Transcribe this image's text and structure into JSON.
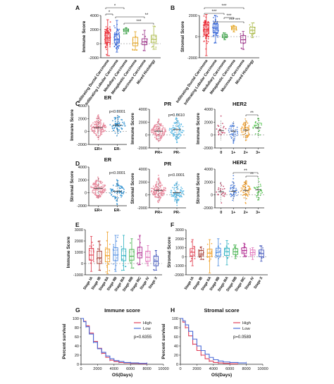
{
  "colors": {
    "ductal": "#e8202a",
    "lobular": "#2d5fd6",
    "medullary": "#2e9a3a",
    "metaplastic": "#e3a21a",
    "mucinous": "#9a2f86",
    "mixed": "#a9b845",
    "er_pos": "#e8889c",
    "er_neg": "#2b8fd0",
    "pr_pos": "#e8889c",
    "pr_neg": "#55b8e6",
    "her2_0": "#c23a60",
    "her2_1": "#4a7ee0",
    "her2_2": "#f0a030",
    "her2_3": "#4fc24a",
    "stage": [
      "#e0384a",
      "#a0332a",
      "#f0a028",
      "#4a8ae0",
      "#2ab0c0",
      "#40b048",
      "#b02a90",
      "#e070b8",
      "#3a4fb8"
    ],
    "km_high": "#e0405a",
    "km_low": "#4a6ad8"
  },
  "panels": {
    "A": "A",
    "B": "B",
    "C": "C",
    "D": "D",
    "E": "E",
    "F": "F",
    "G": "G",
    "H": "H"
  },
  "chart_data": [
    {
      "id": "A",
      "type": "box",
      "ylabel": "Immune Score",
      "ylim": [
        -2000,
        4000
      ],
      "yticks": [
        "4000",
        "2000",
        "0",
        "-2000"
      ],
      "categories": [
        "Infiltrating Ductal Carcinoma",
        "Infiltrating Lobular Carcinoma",
        "Medullary Carcinoma",
        "Metaplastic Carcinoma",
        "Mucinous Carcinoma",
        "Mixed Histology"
      ],
      "values": [
        {
          "min": -1700,
          "q1": 150,
          "median": 800,
          "q3": 1500,
          "max": 3400
        },
        {
          "min": -1200,
          "q1": 100,
          "median": 650,
          "q3": 1300,
          "max": 3300
        },
        {
          "min": 1400,
          "q1": 1700,
          "median": 1900,
          "q3": 2100,
          "max": 2250
        },
        {
          "min": -900,
          "q1": -300,
          "median": 100,
          "q3": 900,
          "max": 1700
        },
        {
          "min": -1000,
          "q1": -150,
          "median": 250,
          "q3": 700,
          "max": 1900
        },
        {
          "min": -800,
          "q1": 200,
          "median": 600,
          "q3": 1200,
          "max": 2500
        }
      ],
      "significance": [
        "*",
        "*",
        "**",
        "***"
      ]
    },
    {
      "id": "B",
      "type": "box",
      "ylabel": "Stromal Score",
      "ylim": [
        -2000,
        2000
      ],
      "yticks": [
        "2000",
        "0",
        "-2000"
      ],
      "categories": [
        "Infiltrating Ductal Carcinoma",
        "Infiltrating Lobular Carcinoma",
        "Medullary Carcinoma",
        "Metaplastic Carcinoma",
        "Mucinous Carcinoma",
        "Mixed Histology"
      ],
      "values": [
        {
          "min": -1800,
          "q1": 250,
          "median": 650,
          "q3": 1100,
          "max": 2100
        },
        {
          "min": -600,
          "q1": 400,
          "median": 800,
          "q3": 1200,
          "max": 2000
        },
        {
          "min": -300,
          "q1": -100,
          "median": 50,
          "q3": 200,
          "max": 350
        },
        {
          "min": 450,
          "q1": 650,
          "median": 800,
          "q3": 950,
          "max": 1050
        },
        {
          "min": -1200,
          "q1": -600,
          "median": -300,
          "q3": 100,
          "max": 500
        },
        {
          "min": -100,
          "q1": 300,
          "median": 600,
          "q3": 900,
          "max": 1300
        }
      ],
      "significance": [
        "***",
        "***",
        "***",
        "*** ***"
      ]
    },
    {
      "id": "C-ER",
      "type": "scatter",
      "title": "ER",
      "ylabel": "Immune Score",
      "ylim": [
        -2000,
        4000
      ],
      "yticks": [
        "4000",
        "2000",
        "0",
        "-2000"
      ],
      "categories": [
        "ER+",
        "ER-"
      ],
      "medians": [
        600,
        1000
      ],
      "pvalue": "p<0.0001"
    },
    {
      "id": "C-PR",
      "type": "scatter",
      "title": "PR",
      "ylabel": "Immune Score",
      "ylim": [
        -2000,
        4000
      ],
      "yticks": [
        "4000",
        "2000",
        "0",
        "-2000"
      ],
      "categories": [
        "PR+",
        "PR-"
      ],
      "medians": [
        600,
        850
      ],
      "pvalue": "p=0.0610"
    },
    {
      "id": "C-HER2",
      "type": "scatter",
      "title": "HER2",
      "ylabel": "Immune Score",
      "ylim": [
        -2000,
        4000
      ],
      "yticks": [
        "4000",
        "2000",
        "0",
        "-2000"
      ],
      "categories": [
        "0",
        "1+",
        "2+",
        "3+"
      ],
      "medians": [
        700,
        600,
        750,
        1100
      ],
      "significance": [
        "**"
      ]
    },
    {
      "id": "D-ER",
      "type": "scatter",
      "title": "ER",
      "ylabel": "Stromal Score",
      "ylim": [
        -2000,
        4000
      ],
      "yticks": [
        "4000",
        "2000",
        "0",
        "-2000"
      ],
      "categories": [
        "ER+",
        "ER-"
      ],
      "medians": [
        700,
        250
      ],
      "pvalue": "p<0.0001"
    },
    {
      "id": "D-PR",
      "type": "scatter",
      "title": "PR",
      "ylabel": "Stromal Score",
      "ylim": [
        -2000,
        4000
      ],
      "yticks": [
        "4000",
        "2000",
        "0",
        "-2000"
      ],
      "categories": [
        "PR+",
        "PR-"
      ],
      "medians": [
        700,
        350
      ],
      "pvalue": "p<0.0001"
    },
    {
      "id": "D-HER2",
      "type": "scatter",
      "title": "HER2",
      "ylabel": "Stromal Score",
      "ylim": [
        -2000,
        4000
      ],
      "yticks": [
        "4000",
        "2000",
        "0",
        "-2000"
      ],
      "categories": [
        "0",
        "1+",
        "2+",
        "3+"
      ],
      "medians": [
        500,
        550,
        700,
        800
      ],
      "significance": [
        "**",
        "**"
      ]
    },
    {
      "id": "E",
      "type": "box",
      "ylabel": "Immune Score",
      "ylim": [
        -1000,
        3000
      ],
      "yticks": [
        "3000",
        "2000",
        "1000",
        "0",
        "-1000"
      ],
      "categories": [
        "Stage IA",
        "Stage IB",
        "Stage IIA",
        "Stage IIB",
        "Stage IIIA",
        "Stage IIIB",
        "Stage IIIC",
        "Stage IV",
        "Stage X"
      ],
      "values": [
        {
          "min": -700,
          "q1": 300,
          "median": 750,
          "q3": 1350,
          "max": 2400
        },
        {
          "min": -600,
          "q1": 0,
          "median": 500,
          "q3": 1100,
          "max": 2000
        },
        {
          "min": -900,
          "q1": 150,
          "median": 700,
          "q3": 1300,
          "max": 2800
        },
        {
          "min": -700,
          "q1": 250,
          "median": 750,
          "q3": 1400,
          "max": 2500
        },
        {
          "min": -600,
          "q1": 250,
          "median": 700,
          "q3": 1300,
          "max": 2500
        },
        {
          "min": -400,
          "q1": 300,
          "median": 650,
          "q3": 1250,
          "max": 2200
        },
        {
          "min": -100,
          "q1": 500,
          "median": 950,
          "q3": 1450,
          "max": 2500
        },
        {
          "min": -200,
          "q1": 200,
          "median": 550,
          "q3": 1100,
          "max": 1600
        },
        {
          "min": -600,
          "q1": -200,
          "median": 200,
          "q3": 650,
          "max": 1150
        }
      ]
    },
    {
      "id": "F",
      "type": "box",
      "ylabel": "Stromal Score",
      "ylim": [
        -2000,
        3000
      ],
      "yticks": [
        "3000",
        "2000",
        "1000",
        "0",
        "-1000",
        "-2000"
      ],
      "categories": [
        "Stage IA",
        "Stage IB",
        "Stage IIA",
        "Stage IIB",
        "Stage IIIA",
        "Stage IIIB",
        "Stage IIIC",
        "Stage IV",
        "Stage X"
      ],
      "values": [
        {
          "min": -1000,
          "q1": 100,
          "median": 500,
          "q3": 900,
          "max": 1900
        },
        {
          "min": -300,
          "q1": 100,
          "median": 300,
          "q3": 700,
          "max": 1100
        },
        {
          "min": -1800,
          "q1": 0,
          "median": 400,
          "q3": 850,
          "max": 1900
        },
        {
          "min": -1000,
          "q1": 100,
          "median": 500,
          "q3": 950,
          "max": 2000
        },
        {
          "min": -900,
          "q1": 150,
          "median": 550,
          "q3": 950,
          "max": 1800
        },
        {
          "min": -200,
          "q1": 250,
          "median": 550,
          "q3": 900,
          "max": 1300
        },
        {
          "min": 0,
          "q1": 350,
          "median": 700,
          "q3": 1000,
          "max": 1500
        },
        {
          "min": -300,
          "q1": 200,
          "median": 450,
          "q3": 750,
          "max": 1000
        },
        {
          "min": -500,
          "q1": 0,
          "median": 350,
          "q3": 750,
          "max": 1200
        }
      ]
    },
    {
      "id": "G",
      "type": "line",
      "title": "Immune score",
      "xlabel": "OS(Days)",
      "ylabel": "Percent survival",
      "xlim": [
        0,
        10000
      ],
      "ylim": [
        0,
        100
      ],
      "xticks": [
        "0",
        "2000",
        "4000",
        "6000",
        "8000",
        "10000"
      ],
      "yticks": [
        "100",
        "80",
        "60",
        "40",
        "20",
        "0"
      ],
      "pvalue": "p=0.6355",
      "series": [
        {
          "name": "High",
          "x": [
            0,
            300,
            600,
            1000,
            1500,
            2000,
            2500,
            3000,
            3500,
            4000,
            4600,
            5200,
            6000,
            7000,
            8000
          ],
          "y": [
            100,
            94,
            84,
            68,
            50,
            35,
            24,
            15,
            9,
            6,
            4,
            3,
            2,
            1,
            1
          ]
        },
        {
          "name": "Low",
          "x": [
            0,
            300,
            600,
            1000,
            1500,
            2000,
            2500,
            3000,
            3500,
            4000,
            4600,
            5200,
            6000,
            7000,
            8000
          ],
          "y": [
            100,
            93,
            82,
            66,
            48,
            34,
            26,
            18,
            12,
            8,
            6,
            4,
            3,
            2,
            2
          ]
        }
      ]
    },
    {
      "id": "H",
      "type": "line",
      "title": "Stromal score",
      "xlabel": "OS(Days)",
      "ylabel": "Percent survival",
      "xlim": [
        0,
        10000
      ],
      "ylim": [
        0,
        100
      ],
      "xticks": [
        "0",
        "2000",
        "4000",
        "6000",
        "8000",
        "10000"
      ],
      "yticks": [
        "100",
        "80",
        "60",
        "40",
        "20",
        "0"
      ],
      "pvalue": "p=0.0589",
      "series": [
        {
          "name": "High",
          "x": [
            0,
            300,
            600,
            1000,
            1500,
            2000,
            2500,
            3000,
            3500,
            4000,
            4600,
            5200,
            6000,
            7000
          ],
          "y": [
            100,
            92,
            80,
            62,
            44,
            30,
            20,
            12,
            7,
            4,
            3,
            2,
            1,
            1
          ]
        },
        {
          "name": "Low",
          "x": [
            0,
            300,
            600,
            1000,
            1500,
            2000,
            2500,
            3000,
            3500,
            4000,
            4600,
            5200,
            6000,
            7000,
            8000
          ],
          "y": [
            100,
            95,
            86,
            72,
            55,
            40,
            30,
            22,
            15,
            10,
            7,
            5,
            4,
            3,
            3
          ]
        }
      ]
    }
  ]
}
